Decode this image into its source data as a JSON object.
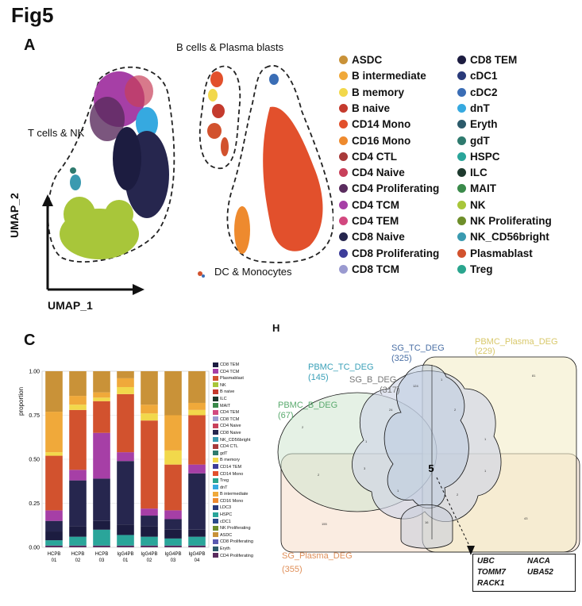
{
  "figure": {
    "title": "Fig5"
  },
  "panelA": {
    "label": "A",
    "groups": {
      "t_nk": "T cells & NK",
      "b_plasma": "B cells & Plasma blasts",
      "dc_mono": "DC & Monocytes"
    },
    "axes": {
      "x": "UMAP_1",
      "y": "UMAP_2"
    },
    "legend_col1": [
      {
        "label": "ASDC",
        "color": "#c99238"
      },
      {
        "label": "B intermediate",
        "color": "#f0a93a"
      },
      {
        "label": "B memory",
        "color": "#f2d84b"
      },
      {
        "label": "B naive",
        "color": "#c43a2d"
      },
      {
        "label": "CD14 Mono",
        "color": "#e2502c"
      },
      {
        "label": "CD16 Mono",
        "color": "#ee8a2e"
      },
      {
        "label": "CD4 CTL",
        "color": "#a83a3a"
      },
      {
        "label": "CD4 Naive",
        "color": "#c8405a"
      },
      {
        "label": "CD4 Proliferating",
        "color": "#5a2c5e"
      },
      {
        "label": "CD4 TCM",
        "color": "#a63fa6"
      },
      {
        "label": "CD4 TEM",
        "color": "#d2487f"
      },
      {
        "label": "CD8 Naive",
        "color": "#26264e"
      },
      {
        "label": "CD8 Proliferating",
        "color": "#3d3d9a"
      },
      {
        "label": "CD8 TCM",
        "color": "#9a9ad0"
      }
    ],
    "legend_col2": [
      {
        "label": "CD8 TEM",
        "color": "#1c1c40"
      },
      {
        "label": "cDC1",
        "color": "#2a3a7a"
      },
      {
        "label": "cDC2",
        "color": "#3a6db5"
      },
      {
        "label": "dnT",
        "color": "#36a9e0"
      },
      {
        "label": "Eryth",
        "color": "#2c5a6a"
      },
      {
        "label": "gdT",
        "color": "#2e7a6e"
      },
      {
        "label": "HSPC",
        "color": "#2aa59a"
      },
      {
        "label": "ILC",
        "color": "#1e3a2e"
      },
      {
        "label": "MAIT",
        "color": "#3a8a4a"
      },
      {
        "label": "NK",
        "color": "#a8c63a"
      },
      {
        "label": "NK Proliferating",
        "color": "#6e8e2a"
      },
      {
        "label": "NK_CD56bright",
        "color": "#3a9ab0"
      },
      {
        "label": "Plasmablast",
        "color": "#d2522e"
      },
      {
        "label": "Treg",
        "color": "#2aa58e"
      }
    ]
  },
  "panelC": {
    "label": "C",
    "ylabel": "proportion",
    "yticks": [
      "1.00",
      "0.75",
      "0.50",
      "0.25",
      "0.00"
    ],
    "samples": [
      {
        "line1": "HCPB",
        "line2": "01"
      },
      {
        "line1": "HCPB",
        "line2": "02"
      },
      {
        "line1": "HCPB",
        "line2": "03"
      },
      {
        "line1": "IgG4PB",
        "line2": "01"
      },
      {
        "line1": "IgG4PB",
        "line2": "02"
      },
      {
        "line1": "IgG4PB",
        "line2": "03"
      },
      {
        "line1": "IgG4PB",
        "line2": "04"
      }
    ],
    "legend": [
      {
        "label": "CD8 TEM",
        "color": "#1c1c40"
      },
      {
        "label": "CD4 TCM",
        "color": "#a63fa6"
      },
      {
        "label": "Plasmablast",
        "color": "#d2522e"
      },
      {
        "label": "NK",
        "color": "#a8c63a"
      },
      {
        "label": "B naive",
        "color": "#c43a2d"
      },
      {
        "label": "ILC",
        "color": "#1e3a2e"
      },
      {
        "label": "MAIT",
        "color": "#3a8a4a"
      },
      {
        "label": "CD4 TEM",
        "color": "#d2487f"
      },
      {
        "label": "CD8 TCM",
        "color": "#9a9ad0"
      },
      {
        "label": "CD4 Naive",
        "color": "#c8405a"
      },
      {
        "label": "CD8 Naive",
        "color": "#26264e"
      },
      {
        "label": "NK_CD56bright",
        "color": "#3a9ab0"
      },
      {
        "label": "CD4 CTL",
        "color": "#a83a3a"
      },
      {
        "label": "gdT",
        "color": "#2e7a6e"
      },
      {
        "label": "B memory",
        "color": "#f2d84b"
      },
      {
        "label": "CD14 TEM",
        "color": "#3d3d9a"
      },
      {
        "label": "CD14 Mono",
        "color": "#e2502c"
      },
      {
        "label": "Treg",
        "color": "#2aa58e"
      },
      {
        "label": "dnT",
        "color": "#36a9e0"
      },
      {
        "label": "B intermediate",
        "color": "#f0a93a"
      },
      {
        "label": "CD16 Mono",
        "color": "#ee8a2e"
      },
      {
        "label": "LDC3",
        "color": "#2a3a7a"
      },
      {
        "label": "HSPC",
        "color": "#2aa59a"
      },
      {
        "label": "cDC1",
        "color": "#2a4a8a"
      },
      {
        "label": "NK Proliferating",
        "color": "#6e8e2a"
      },
      {
        "label": "ASDC",
        "color": "#c99238"
      },
      {
        "label": "CD8 Proliferating",
        "color": "#5a5ab0"
      },
      {
        "label": "Eryth",
        "color": "#2c5a6a"
      },
      {
        "label": "CD4 Proliferating",
        "color": "#5a2c5e"
      }
    ]
  },
  "chart_data": {
    "type": "bar",
    "stacked": true,
    "title": "",
    "xlabel": "",
    "ylabel": "proportion",
    "ylim": [
      0,
      1
    ],
    "categories": [
      "HCPB 01",
      "HCPB 02",
      "HCPB 03",
      "IgG4PB 01",
      "IgG4PB 02",
      "IgG4PB 03",
      "IgG4PB 04"
    ],
    "series": [
      {
        "name": "CD4 Proliferating",
        "color": "#5a2c5e",
        "values": [
          0.01,
          0.01,
          0.01,
          0.01,
          0.01,
          0.01,
          0.01
        ]
      },
      {
        "name": "HSPC",
        "color": "#2aa59a",
        "values": [
          0.03,
          0.05,
          0.09,
          0.06,
          0.05,
          0.04,
          0.05
        ]
      },
      {
        "name": "CD8 TEM",
        "color": "#1c1c40",
        "values": [
          0.05,
          0.06,
          0.05,
          0.06,
          0.06,
          0.05,
          0.04
        ]
      },
      {
        "name": "CD8 Naive",
        "color": "#26264e",
        "values": [
          0.06,
          0.26,
          0.24,
          0.36,
          0.06,
          0.06,
          0.32
        ]
      },
      {
        "name": "CD4 TCM",
        "color": "#a63fa6",
        "values": [
          0.06,
          0.06,
          0.26,
          0.05,
          0.04,
          0.05,
          0.05
        ]
      },
      {
        "name": "Plasmablast",
        "color": "#d2522e",
        "values": [
          0.31,
          0.34,
          0.18,
          0.33,
          0.5,
          0.26,
          0.28
        ]
      },
      {
        "name": "B memory",
        "color": "#f2d84b",
        "values": [
          0.02,
          0.03,
          0.02,
          0.04,
          0.04,
          0.08,
          0.03
        ]
      },
      {
        "name": "B intermediate",
        "color": "#f0a93a",
        "values": [
          0.23,
          0.05,
          0.03,
          0.05,
          0.05,
          0.2,
          0.04
        ]
      },
      {
        "name": "ASDC",
        "color": "#c99238",
        "values": [
          0.23,
          0.14,
          0.12,
          0.04,
          0.19,
          0.25,
          0.18
        ]
      }
    ]
  },
  "panelH": {
    "label": "H",
    "sets": [
      {
        "name": "SG_TC_DEG",
        "count": "(325)",
        "color": "#4a6fa5"
      },
      {
        "name": "PBMC_Plasma_DEG",
        "count": "(229)",
        "color": "#d8c86a"
      },
      {
        "name": "PBMC_TC_DEG",
        "count": "(145)",
        "color": "#3aa0b8"
      },
      {
        "name": "SG_B_DEG",
        "count": "(317)",
        "color": "#777777"
      },
      {
        "name": "PBMC_B_DEG",
        "count": "(67)",
        "color": "#5aaa6e"
      },
      {
        "name": "SG_Plasma_DEG",
        "count": "(355)",
        "color": "#e0905a"
      }
    ],
    "center_count": "5",
    "genes": [
      "UBC",
      "NACA",
      "TOMM7",
      "UBA52",
      "RACK1"
    ]
  }
}
